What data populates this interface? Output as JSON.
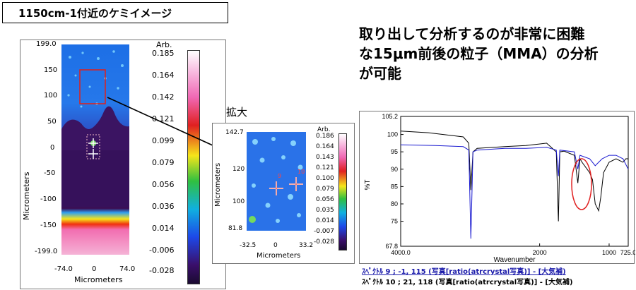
{
  "title_box": "1150cm-1付近のケミイメージ",
  "headline_lines": [
    "取り出して分析するのが非常に困難",
    "な15μm前後の粒子（MMA）の分析",
    "が可能"
  ],
  "zoom_label": "拡大",
  "map1": {
    "y_ticks": [
      "199.0",
      "150",
      "100",
      "50",
      "0",
      "-50",
      "-100",
      "-150",
      "-199.0"
    ],
    "x_ticks": [
      "-74.0",
      "0",
      "74.0"
    ],
    "x_title": "Micrometers",
    "y_title": "Micrometers",
    "colorbar_title": "Arb.",
    "colorbar_ticks": [
      "0.185",
      "0.164",
      "0.142",
      "0.121",
      "0.099",
      "0.079",
      "0.056",
      "0.036",
      "0.014",
      "-0.006",
      "-0.028"
    ]
  },
  "map2": {
    "y_ticks": [
      "142.7",
      "120",
      "100",
      "81.8"
    ],
    "x_ticks": [
      "-32.5",
      "0",
      "33.2"
    ],
    "x_title": "Micrometers",
    "y_title": "Micrometers",
    "colorbar_title": "Arb.",
    "colorbar_ticks": [
      "0.186",
      "0.164",
      "0.143",
      "0.121",
      "0.100",
      "0.079",
      "0.056",
      "0.035",
      "0.014",
      "-0.007",
      "-0.028"
    ],
    "marker_labels": [
      "9",
      "10"
    ]
  },
  "chart_data": {
    "type": "line",
    "xlabel": "Wavenumber",
    "ylabel": "%T",
    "xlim": [
      4000,
      725
    ],
    "ylim": [
      67.8,
      105.2
    ],
    "x_ticks": [
      "4000.0",
      "2000",
      "1000",
      "725.0"
    ],
    "y_ticks": [
      "105.2",
      "100",
      "95",
      "90",
      "85",
      "80",
      "75",
      "67.8"
    ],
    "series": [
      {
        "color": "#000000",
        "points": [
          [
            4000,
            101
          ],
          [
            3600,
            100.5
          ],
          [
            3300,
            99.8
          ],
          [
            3100,
            99.3
          ],
          [
            3020,
            97.5
          ],
          [
            2990,
            84
          ],
          [
            2960,
            95
          ],
          [
            2900,
            96
          ],
          [
            2500,
            96.5
          ],
          [
            2200,
            96.8
          ],
          [
            1900,
            97.5
          ],
          [
            1760,
            95
          ],
          [
            1730,
            75
          ],
          [
            1710,
            95
          ],
          [
            1650,
            95.2
          ],
          [
            1500,
            94
          ],
          [
            1450,
            86
          ],
          [
            1420,
            93
          ],
          [
            1390,
            92
          ],
          [
            1280,
            89
          ],
          [
            1240,
            87
          ],
          [
            1200,
            80
          ],
          [
            1150,
            78
          ],
          [
            1120,
            82
          ],
          [
            1080,
            89
          ],
          [
            1000,
            92
          ],
          [
            900,
            93
          ],
          [
            800,
            92
          ],
          [
            760,
            93
          ],
          [
            725,
            93
          ]
        ]
      },
      {
        "color": "#1a1ad0",
        "points": [
          [
            4000,
            97
          ],
          [
            3500,
            96.8
          ],
          [
            3100,
            96.5
          ],
          [
            3020,
            95.5
          ],
          [
            2990,
            70
          ],
          [
            2960,
            95
          ],
          [
            2900,
            95.5
          ],
          [
            2500,
            96
          ],
          [
            2200,
            96
          ],
          [
            1900,
            96.3
          ],
          [
            1760,
            95.5
          ],
          [
            1730,
            88
          ],
          [
            1710,
            95.5
          ],
          [
            1500,
            95
          ],
          [
            1450,
            90
          ],
          [
            1420,
            94
          ],
          [
            1280,
            93
          ],
          [
            1240,
            92
          ],
          [
            1200,
            91
          ],
          [
            1150,
            92
          ],
          [
            1100,
            93
          ],
          [
            1000,
            94
          ],
          [
            900,
            94
          ],
          [
            800,
            93
          ],
          [
            725,
            90
          ]
        ]
      }
    ]
  },
  "footer": {
    "line1": "ｽﾍﾟｸﾄﾙ 9 ; -1, 115 (写真[ratio(atrcrystal写真)] - [大気補)",
    "line2": "ｽﾍﾟｸﾄﾙ 10 ; 21, 118 (写真[ratio(atrcrystal写真)] - [大気補)"
  }
}
